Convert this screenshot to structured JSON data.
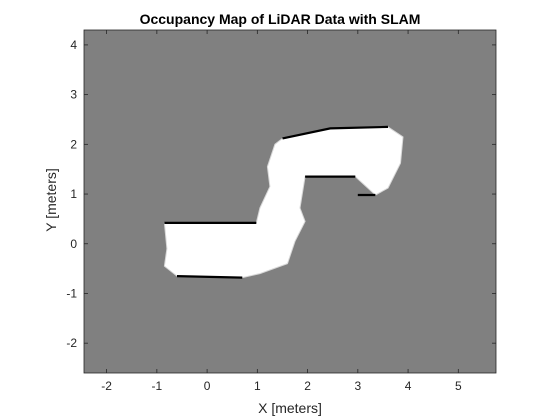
{
  "chart_data": {
    "type": "heatmap",
    "title": "Occupancy Map of LiDAR Data with SLAM",
    "xlabel": "X [meters]",
    "ylabel": "Y [meters]",
    "xlim": [
      -2.45,
      5.75
    ],
    "ylim": [
      -2.6,
      4.3
    ],
    "xticks": [
      -2,
      -1,
      0,
      1,
      2,
      3,
      4,
      5
    ],
    "yticks": [
      -2,
      -1,
      0,
      1,
      2,
      3,
      4
    ],
    "colormap": "gray",
    "colors": {
      "unknown": "#808080",
      "free": "#ffffff",
      "occupied": "#000000",
      "axes": "#262626"
    },
    "grid": false,
    "free_region_outline": [
      [
        -0.85,
        0.42
      ],
      [
        0.98,
        0.42
      ],
      [
        1.05,
        0.72
      ],
      [
        1.25,
        1.15
      ],
      [
        1.2,
        1.55
      ],
      [
        1.35,
        2.0
      ],
      [
        1.5,
        2.12
      ],
      [
        2.45,
        2.32
      ],
      [
        3.6,
        2.35
      ],
      [
        3.9,
        2.15
      ],
      [
        3.85,
        1.62
      ],
      [
        3.6,
        1.12
      ],
      [
        3.35,
        0.98
      ],
      [
        2.95,
        1.35
      ],
      [
        1.95,
        1.35
      ],
      [
        1.85,
        0.72
      ],
      [
        1.95,
        0.45
      ],
      [
        1.75,
        0.05
      ],
      [
        1.6,
        -0.4
      ],
      [
        1.05,
        -0.6
      ],
      [
        0.7,
        -0.68
      ],
      [
        -0.6,
        -0.65
      ],
      [
        -0.85,
        -0.45
      ],
      [
        -0.8,
        -0.1
      ]
    ],
    "occupied_edges": [
      [
        [
          -0.85,
          0.42
        ],
        [
          0.98,
          0.42
        ]
      ],
      [
        [
          1.5,
          2.12
        ],
        [
          2.45,
          2.32
        ],
        [
          3.6,
          2.35
        ]
      ],
      [
        [
          1.95,
          1.35
        ],
        [
          2.95,
          1.35
        ]
      ],
      [
        [
          -0.6,
          -0.65
        ],
        [
          0.7,
          -0.68
        ]
      ],
      [
        [
          3.0,
          0.98
        ],
        [
          3.35,
          0.98
        ]
      ]
    ]
  }
}
